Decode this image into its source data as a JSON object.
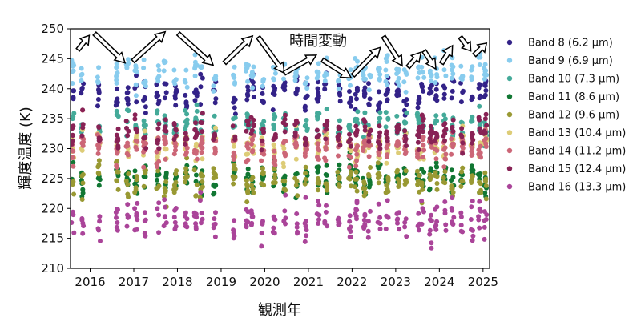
{
  "chart_data": {
    "type": "scatter",
    "title": "",
    "xlabel": "観測年",
    "ylabel": "輝度温度 (K)",
    "xlim": [
      2015.55,
      2025.15
    ],
    "ylim": [
      210,
      250
    ],
    "x_ticks": [
      "2016",
      "2017",
      "2018",
      "2019",
      "2020",
      "2021",
      "2022",
      "2023",
      "2024",
      "2025"
    ],
    "y_ticks": [
      "210",
      "215",
      "220",
      "225",
      "230",
      "235",
      "240",
      "245",
      "250"
    ],
    "grid": false,
    "legend_position": "right",
    "annotation": "時間変動",
    "arrows": [
      {
        "x1": 2015.72,
        "y1": 246.5,
        "x2": 2015.98,
        "y2": 248.9
      },
      {
        "x1": 2016.1,
        "y1": 249.2,
        "x2": 2016.8,
        "y2": 244.3
      },
      {
        "x1": 2016.98,
        "y1": 244.6,
        "x2": 2017.72,
        "y2": 249.5
      },
      {
        "x1": 2018.02,
        "y1": 249.2,
        "x2": 2018.82,
        "y2": 243.9
      },
      {
        "x1": 2019.08,
        "y1": 244.3,
        "x2": 2019.72,
        "y2": 248.8
      },
      {
        "x1": 2019.85,
        "y1": 248.6,
        "x2": 2020.45,
        "y2": 242.6
      },
      {
        "x1": 2020.45,
        "y1": 242.6,
        "x2": 2021.18,
        "y2": 245.6
      },
      {
        "x1": 2021.32,
        "y1": 244.8,
        "x2": 2021.98,
        "y2": 241.8
      },
      {
        "x1": 2022.02,
        "y1": 242.2,
        "x2": 2022.65,
        "y2": 246.9
      },
      {
        "x1": 2022.72,
        "y1": 248.7,
        "x2": 2023.15,
        "y2": 243.8
      },
      {
        "x1": 2023.28,
        "y1": 243.6,
        "x2": 2023.58,
        "y2": 246.1
      },
      {
        "x1": 2023.65,
        "y1": 246.3,
        "x2": 2023.92,
        "y2": 243.3
      },
      {
        "x1": 2024.05,
        "y1": 244.2,
        "x2": 2024.3,
        "y2": 247.2
      },
      {
        "x1": 2024.48,
        "y1": 248.6,
        "x2": 2024.72,
        "y2": 246.3
      },
      {
        "x1": 2024.8,
        "y1": 245.6,
        "x2": 2025.08,
        "y2": 247.6
      }
    ],
    "epochs": [
      2015.6,
      2015.82,
      2016.2,
      2016.62,
      2016.85,
      2017.05,
      2017.25,
      2017.55,
      2017.72,
      2017.95,
      2018.2,
      2018.42,
      2018.55,
      2018.85,
      2019.3,
      2019.6,
      2019.72,
      2019.95,
      2020.22,
      2020.45,
      2020.72,
      2020.95,
      2021.22,
      2021.4,
      2021.7,
      2021.95,
      2022.1,
      2022.28,
      2022.4,
      2022.62,
      2022.8,
      2023.05,
      2023.22,
      2023.52,
      2023.62,
      2023.8,
      2023.92,
      2024.12,
      2024.3,
      2024.52,
      2024.75,
      2024.92,
      2025.05
    ],
    "series": [
      {
        "name": "Band 8 (6.2 µm)",
        "color": "#332288",
        "center": 239.2,
        "spread": 2.0
      },
      {
        "name": "Band 9 (6.9 µm)",
        "color": "#88ccee",
        "center": 242.6,
        "spread": 1.8
      },
      {
        "name": "Band 10 (7.3 µm)",
        "color": "#44aa99",
        "center": 234.0,
        "spread": 1.8
      },
      {
        "name": "Band 11 (8.6 µm)",
        "color": "#117733",
        "center": 225.2,
        "spread": 1.8
      },
      {
        "name": "Band 12 (9.6 µm)",
        "color": "#999933",
        "center": 224.6,
        "spread": 2.0
      },
      {
        "name": "Band 13 (10.4 µm)",
        "color": "#ddcc77",
        "center": 230.6,
        "spread": 1.8
      },
      {
        "name": "Band 14 (11.2 µm)",
        "color": "#cc6677",
        "center": 230.0,
        "spread": 1.8
      },
      {
        "name": "Band 15 (12.4 µm)",
        "color": "#882255",
        "center": 232.8,
        "spread": 1.8
      },
      {
        "name": "Band 16 (13.3 µm)",
        "color": "#aa4499",
        "center": 218.2,
        "spread": 2.6
      }
    ]
  }
}
